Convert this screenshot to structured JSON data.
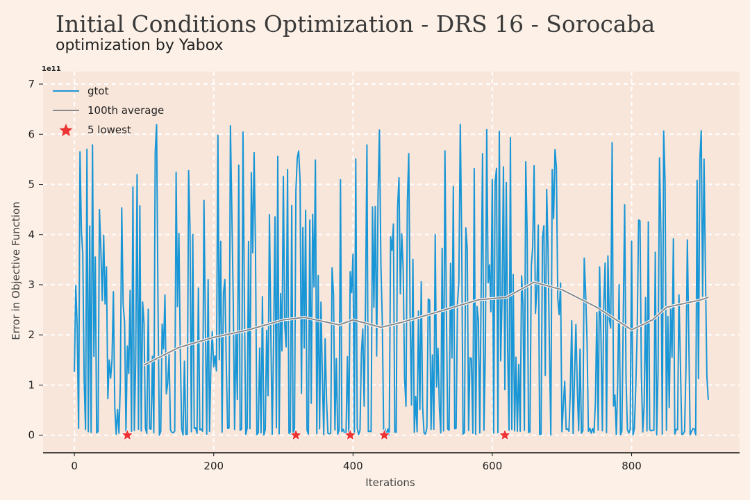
{
  "chart_data": {
    "type": "line",
    "title": "Initial Conditions Optimization - DRS 16 - Sorocaba",
    "subtitle": "optimization by Yabox",
    "xlabel": "Iterations",
    "ylabel": "Error in Objective Function",
    "y_scale_label": "1e11",
    "xlim": [
      -45,
      955
    ],
    "ylim": [
      -0.35,
      7.25
    ],
    "x_ticks": [
      0,
      200,
      400,
      600,
      800
    ],
    "y_ticks": [
      0,
      1,
      2,
      3,
      4,
      5,
      6,
      7
    ],
    "x_tick_labels": [
      "0",
      "200",
      "400",
      "600",
      "800"
    ],
    "y_tick_labels": [
      "0",
      "1",
      "2",
      "3",
      "4",
      "5",
      "6",
      "7"
    ],
    "grid": true,
    "legend_position": "top-left",
    "series": [
      {
        "name": "gtot",
        "kind": "noisy-line",
        "color": "#1996d6",
        "x_range": [
          0,
          910
        ],
        "y_min": 0.0,
        "y_max": 6.9
      },
      {
        "name": "100th average",
        "kind": "line",
        "color": "#8a8a8a",
        "x": [
          100,
          150,
          200,
          250,
          300,
          330,
          380,
          400,
          440,
          470,
          520,
          580,
          620,
          660,
          700,
          750,
          800,
          830,
          850,
          900,
          910
        ],
        "values": [
          1.4,
          1.75,
          1.95,
          2.1,
          2.3,
          2.35,
          2.2,
          2.3,
          2.15,
          2.25,
          2.45,
          2.7,
          2.75,
          3.05,
          2.9,
          2.55,
          2.1,
          2.3,
          2.55,
          2.7,
          2.75
        ]
      },
      {
        "name": "5 lowest",
        "kind": "markers",
        "marker": "star",
        "color": "#ee3333",
        "x": [
          76,
          318,
          396,
          445,
          618
        ],
        "values": [
          0,
          0,
          0,
          0,
          0
        ]
      }
    ]
  }
}
